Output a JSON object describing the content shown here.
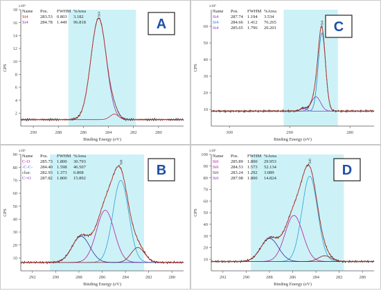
{
  "colors": {
    "shade": "#ccf2f7",
    "envelope": "#c0392b",
    "data": "#1a1a1a",
    "letter": "#1f4fa8",
    "frame": "#999999"
  },
  "chart_data": [
    {
      "type": "line",
      "panel_label": "A",
      "xlabel": "Binding Energy (eV)",
      "ylabel": "CPS",
      "y_exponent": "x10³",
      "xlim": [
        291,
        278
      ],
      "ylim": [
        0,
        18
      ],
      "x_ticks": [
        "290",
        "288",
        "286",
        "284",
        "282",
        "280"
      ],
      "y_ticks": [
        "2",
        "4",
        "6",
        "8",
        "10",
        "12",
        "14",
        "16",
        "18"
      ],
      "shaded_region": [
        287.2,
        281.8
      ],
      "background": 1.0,
      "envelope_peak": 16.7,
      "table_headers": [
        "Name",
        "Pos.",
        "FWHM",
        "%Area"
      ],
      "table_rows": [
        [
          "Si4",
          "283.53",
          "0.803",
          "3.182"
        ],
        [
          "Si4",
          "284.78",
          "1.449",
          "96.818"
        ]
      ],
      "series": [
        {
          "color": "#cc2222",
          "center": 283.53,
          "height": 0.85,
          "fwhm": 0.803
        },
        {
          "color": "#7b3fb5",
          "center": 284.78,
          "height": 15.7,
          "fwhm": 1.449
        }
      ],
      "peak_labels": [
        {
          "text": "Si4",
          "x": 284.78,
          "y": 16.9
        }
      ]
    },
    {
      "type": "line",
      "panel_label": "C",
      "xlabel": "Binding Energy (eV)",
      "ylabel": "CPS",
      "y_exponent": "x10²",
      "xlim": [
        303,
        276
      ],
      "ylim": [
        0,
        70
      ],
      "x_ticks": [
        "300",
        "290",
        "280"
      ],
      "y_ticks": [
        "10",
        "20",
        "30",
        "40",
        "50",
        "60"
      ],
      "shaded_region": [
        291,
        282
      ],
      "background": 9.0,
      "envelope_peak": 60.0,
      "table_headers": [
        "Name",
        "Pos.",
        "FWHM",
        "%Area"
      ],
      "table_rows": [
        [
          "Si4",
          "287.74",
          "1.194",
          "3.534"
        ],
        [
          "Si4",
          "284.66",
          "1.412",
          "76.265"
        ],
        [
          "Si4",
          "285.65",
          "1.796",
          "20.201"
        ]
      ],
      "series": [
        {
          "color": "#7b3fb5",
          "center": 287.74,
          "height": 1.8,
          "fwhm": 1.194
        },
        {
          "color": "#2b7fc4",
          "center": 284.66,
          "height": 49.0,
          "fwhm": 1.412
        },
        {
          "color": "#7b3fb5",
          "center": 285.65,
          "height": 9.0,
          "fwhm": 1.796
        }
      ],
      "peak_labels": [
        {
          "text": "Si4",
          "x": 284.66,
          "y": 60.5
        }
      ]
    },
    {
      "type": "line",
      "panel_label": "B",
      "xlabel": "Binding Energy (eV)",
      "ylabel": "CPS",
      "y_exponent": "x10¹",
      "xlim": [
        293,
        279
      ],
      "ylim": [
        0,
        90
      ],
      "x_ticks": [
        "292",
        "290",
        "288",
        "286",
        "284",
        "282",
        "280"
      ],
      "y_ticks": [
        "10",
        "20",
        "30",
        "40",
        "50",
        "60",
        "70",
        "80",
        "90"
      ],
      "shaded_region": [
        290.5,
        282.4
      ],
      "background": 6.5,
      "envelope_peak": 81.0,
      "table_headers": [
        "Name",
        "Pos.",
        "FWHM",
        "%Area"
      ],
      "table_rows": [
        [
          "C-O",
          "285.73",
          "1.800",
          "30.793"
        ],
        [
          "-C-C-",
          "284.40",
          "1.598",
          "46.507"
        ],
        [
          "char.",
          "282.93",
          "1.373",
          "6.808"
        ],
        [
          "C=O",
          "287.82",
          "1.800",
          "15.892"
        ]
      ],
      "row_colors": [
        "#b5179e",
        "#3a6fd8",
        "#444444",
        "#7b3fb5"
      ],
      "series": [
        {
          "color": "#b5179e",
          "center": 285.73,
          "height": 42.0,
          "fwhm": 1.8
        },
        {
          "color": "#2b9fd4",
          "center": 284.4,
          "height": 66.0,
          "fwhm": 1.598
        },
        {
          "color": "#8b1a1a",
          "center": 282.93,
          "height": 12.0,
          "fwhm": 1.373
        },
        {
          "color": "#2b2b8f",
          "center": 287.82,
          "height": 21.0,
          "fwhm": 1.8
        }
      ],
      "peak_labels": [
        {
          "text": "Si6",
          "x": 284.4,
          "y": 82.0
        }
      ]
    },
    {
      "type": "line",
      "panel_label": "D",
      "xlabel": "Binding Energy (eV)",
      "ylabel": "CPS",
      "y_exponent": "x10¹",
      "xlim": [
        293,
        279
      ],
      "ylim": [
        0,
        100
      ],
      "x_ticks": [
        "292",
        "290",
        "288",
        "286",
        "284",
        "282",
        "280"
      ],
      "y_ticks": [
        "10",
        "20",
        "30",
        "40",
        "50",
        "60",
        "70",
        "80",
        "90",
        "100"
      ],
      "shaded_region": [
        289.6,
        281.6
      ],
      "background": 8.0,
      "envelope_peak": 91.0,
      "table_headers": [
        "Name",
        "Pos.",
        "FWHM",
        "%Area"
      ],
      "table_rows": [
        [
          "Si6",
          "285.89",
          "1.800",
          "29.953"
        ],
        [
          "Si6",
          "284.53",
          "1.573",
          "52.134"
        ],
        [
          "Si6",
          "283.24",
          "1.292",
          "3.089"
        ],
        [
          "Si6",
          "287.98",
          "1.800",
          "14.824"
        ]
      ],
      "row_colors": [
        "#b5179e",
        "#b5179e",
        "#444444",
        "#7b3fb5"
      ],
      "series": [
        {
          "color": "#b5179e",
          "center": 285.89,
          "height": 40.0,
          "fwhm": 1.8
        },
        {
          "color": "#2b9fd4",
          "center": 284.53,
          "height": 74.0,
          "fwhm": 1.573
        },
        {
          "color": "#8b1a1a",
          "center": 283.24,
          "height": 5.0,
          "fwhm": 1.292
        },
        {
          "color": "#2b2b8f",
          "center": 287.98,
          "height": 20.0,
          "fwhm": 1.8
        }
      ],
      "peak_labels": [
        {
          "text": "Si6",
          "x": 284.53,
          "y": 92.0
        }
      ]
    }
  ]
}
